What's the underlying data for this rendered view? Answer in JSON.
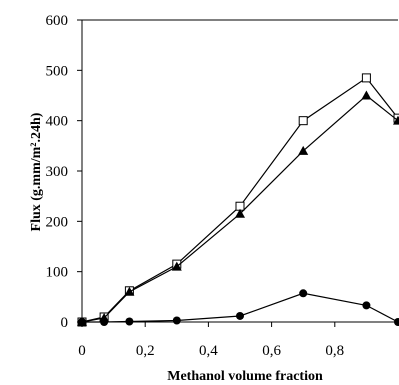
{
  "chart_data": {
    "type": "line",
    "xlabel": "Methanol volume fraction",
    "ylabel": "Flux (g.mm/m².24h)",
    "xlim": [
      0,
      1.0
    ],
    "ylim": [
      0,
      600
    ],
    "x_ticks": [
      "0",
      "0,2",
      "0,4",
      "0,6",
      "0,8"
    ],
    "y_ticks": [
      "0",
      "100",
      "200",
      "300",
      "400",
      "500",
      "600"
    ],
    "x_tick_values": [
      0,
      0.2,
      0.4,
      0.6,
      0.8
    ],
    "y_tick_values": [
      0,
      100,
      200,
      300,
      400,
      500,
      600
    ],
    "grid": false,
    "series": [
      {
        "marker": "open-square",
        "x": [
          0,
          0.07,
          0.15,
          0.3,
          0.5,
          0.7,
          0.9,
          1.0
        ],
        "y": [
          0,
          10,
          62,
          115,
          230,
          400,
          485,
          405
        ]
      },
      {
        "marker": "filled-triangle",
        "x": [
          0,
          0.07,
          0.15,
          0.3,
          0.5,
          0.7,
          0.9,
          1.0
        ],
        "y": [
          0,
          8,
          60,
          110,
          215,
          340,
          450,
          400
        ]
      },
      {
        "marker": "filled-circle",
        "x": [
          0,
          0.07,
          0.15,
          0.3,
          0.5,
          0.7,
          0.9,
          1.0
        ],
        "y": [
          0,
          0,
          1,
          3,
          12,
          57,
          33,
          0
        ]
      }
    ]
  }
}
